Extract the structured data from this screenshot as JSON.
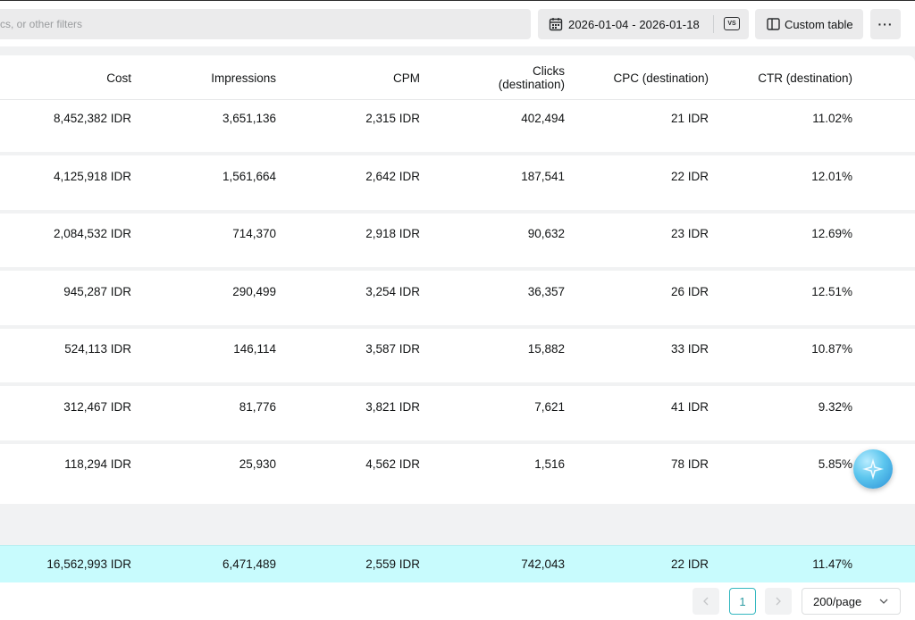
{
  "toolbar": {
    "filter_placeholder": "cs, or other filters",
    "date_range": "2026-01-04 - 2026-01-18",
    "compare_label": "VS",
    "custom_table_label": "Custom table",
    "more_label": "···"
  },
  "table": {
    "columns": [
      "Cost",
      "Impressions",
      "CPM",
      "Clicks (destination)",
      "CPC (destination)",
      "CTR (destination)"
    ],
    "clicks_header_line1": "Clicks",
    "clicks_header_line2": "(destination)",
    "rows": [
      [
        "8,452,382 IDR",
        "3,651,136",
        "2,315 IDR",
        "402,494",
        "21 IDR",
        "11.02%"
      ],
      [
        "4,125,918 IDR",
        "1,561,664",
        "2,642 IDR",
        "187,541",
        "22 IDR",
        "12.01%"
      ],
      [
        "2,084,532 IDR",
        "714,370",
        "2,918 IDR",
        "90,632",
        "23 IDR",
        "12.69%"
      ],
      [
        "945,287 IDR",
        "290,499",
        "3,254 IDR",
        "36,357",
        "26 IDR",
        "12.51%"
      ],
      [
        "524,113 IDR",
        "146,114",
        "3,587 IDR",
        "15,882",
        "33 IDR",
        "10.87%"
      ],
      [
        "312,467 IDR",
        "81,776",
        "3,821 IDR",
        "7,621",
        "41 IDR",
        "9.32%"
      ],
      [
        "118,294 IDR",
        "25,930",
        "4,562 IDR",
        "1,516",
        "78 IDR",
        "5.85%"
      ]
    ],
    "total": [
      "16,562,993 IDR",
      "6,471,489",
      "2,559 IDR",
      "742,043",
      "22 IDR",
      "11.47%"
    ]
  },
  "pagination": {
    "current_page": "1",
    "page_size": "200/page"
  },
  "colors": {
    "total_row": "#c8fbfd",
    "accent": "#35b8c0"
  }
}
